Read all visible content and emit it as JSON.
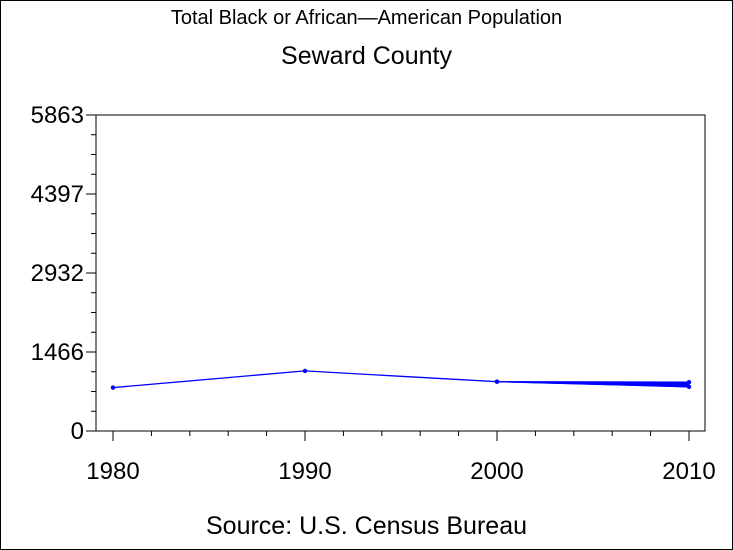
{
  "chart_data": {
    "type": "line",
    "title": "Total Black or African—American Population",
    "subtitle": "Seward County",
    "source": "Source: U.S. Census Bureau",
    "xlim": [
      1980,
      2010
    ],
    "ylim": [
      0,
      5863
    ],
    "x_ticks": [
      "1980",
      "1990",
      "2000",
      "2010"
    ],
    "y_ticks": [
      "0",
      "1466",
      "2932",
      "4397",
      "5863"
    ],
    "grid": false,
    "line_color": "#0000ff",
    "series": [
      {
        "x": [
          1980,
          1990,
          2000,
          2010
        ],
        "values": [
          805,
          1115,
          915,
          905
        ]
      },
      {
        "x": [
          2000,
          2010
        ],
        "values": [
          915,
          820
        ]
      }
    ]
  }
}
